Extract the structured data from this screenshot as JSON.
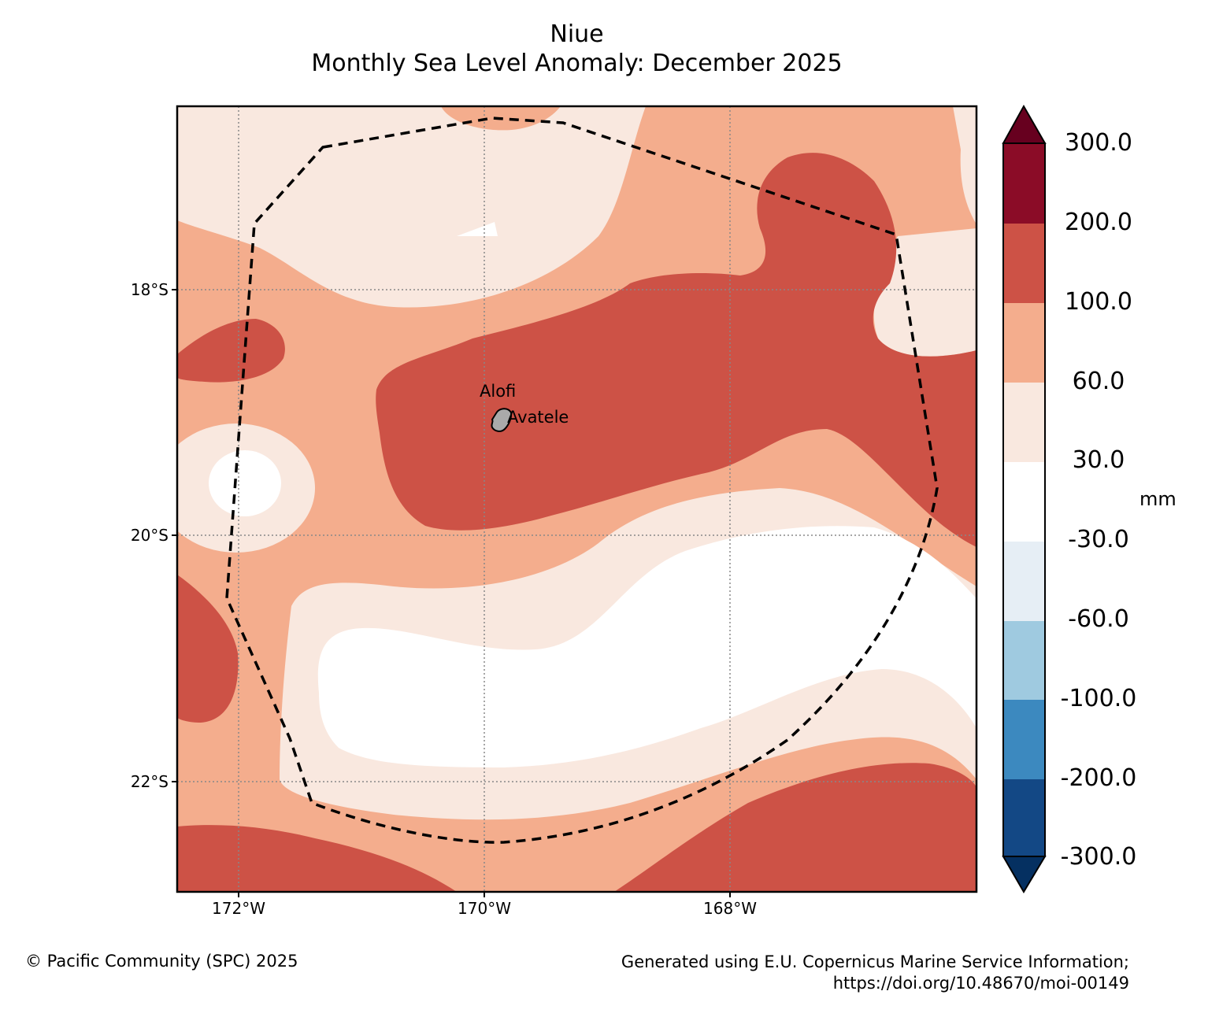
{
  "title": "Niue",
  "subtitle": "Monthly Sea Level Anomaly: December 2025",
  "latitude_labels": [
    "18°S",
    "20°S",
    "22°S"
  ],
  "longitude_labels": [
    "172°W",
    "170°W",
    "168°W"
  ],
  "places": {
    "capital": "Alofi",
    "village": "Avatele"
  },
  "colorbar": {
    "unit": "mm",
    "ticks": [
      "300.0",
      "200.0",
      "100.0",
      "60.0",
      "30.0",
      "-30.0",
      "-60.0",
      "-100.0",
      "-200.0",
      "-300.0"
    ],
    "colors": {
      "above_300": "#67001f",
      "200_300": "#8b0c27",
      "100_200": "#cd5246",
      "60_100": "#f4ad8d",
      "30_60": "#f9e8df",
      "neg30_30": "#ffffff",
      "neg60_neg30": "#e6eef5",
      "neg100_neg60": "#9fcae0",
      "neg200_neg100": "#3c89bf",
      "neg300_neg200": "#134885",
      "below_neg300": "#053061"
    }
  },
  "footer": {
    "copyright": "© Pacific Community (SPC) 2025",
    "source_line1": "Generated using E.U. Copernicus Marine Service Information;",
    "source_line2": "https://doi.org/10.48670/moi-00149"
  }
}
